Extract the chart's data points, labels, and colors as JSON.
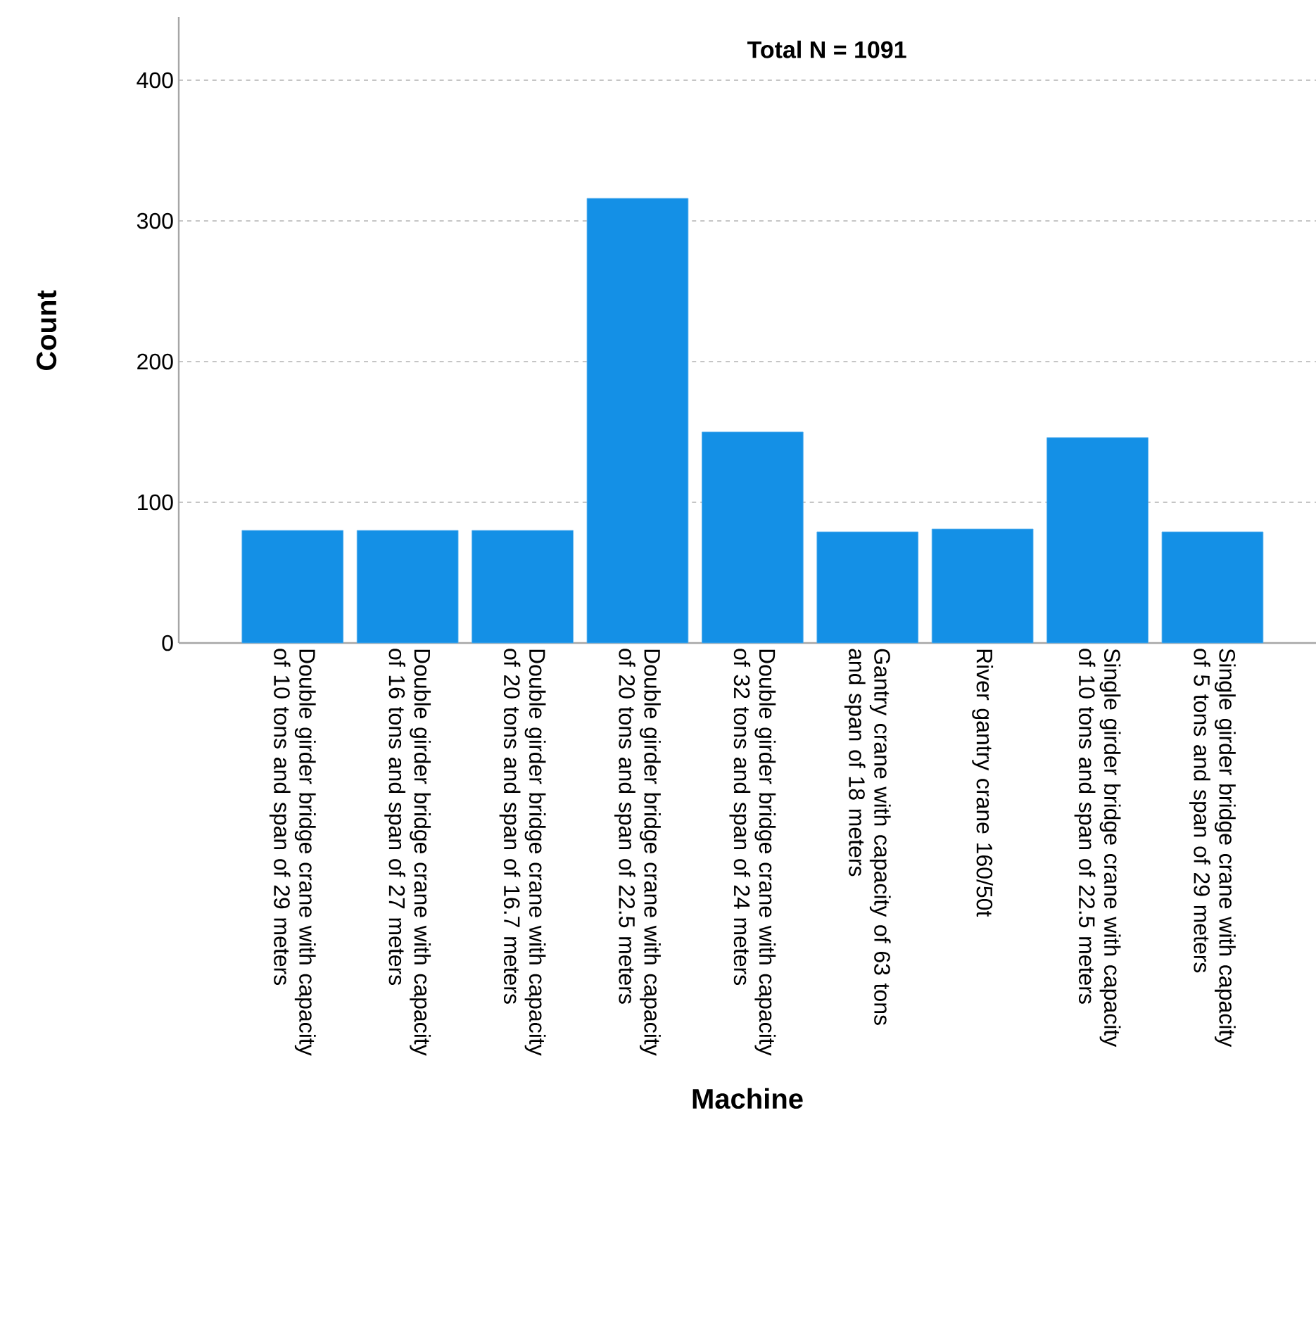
{
  "chart_data": {
    "type": "bar",
    "xlabel": "Machine",
    "ylabel": "Count",
    "annotations": [
      "Total N =  1091"
    ],
    "categories": [
      "Double girder bridge crane with capacity of 10 tons and span of 29 meters",
      "Double girder bridge crane with capacity of 16 tons and span of 27 meters",
      "Double girder bridge crane with capacity of 20 tons and span of 16.7 meters",
      "Double girder bridge crane with capacity of 20 tons and span of 22.5 meters",
      "Double girder bridge crane with capacity of 32 tons and span of 24 meters",
      "Gantry crane with capacity of 63 tons and span of 18 meters",
      "River gantry crane 160/50t",
      "Single girder bridge crane with capacity of 10 tons and span of 22.5 meters",
      "Single girder bridge crane with capacity of 5 tons and span of 29 meters"
    ],
    "values": [
      80,
      80,
      80,
      316,
      150,
      79,
      81,
      146,
      79
    ],
    "color": "#1490e6",
    "ylim": [
      0,
      445
    ],
    "yticks": [
      0,
      100,
      200,
      300,
      400
    ],
    "grid": "y"
  }
}
